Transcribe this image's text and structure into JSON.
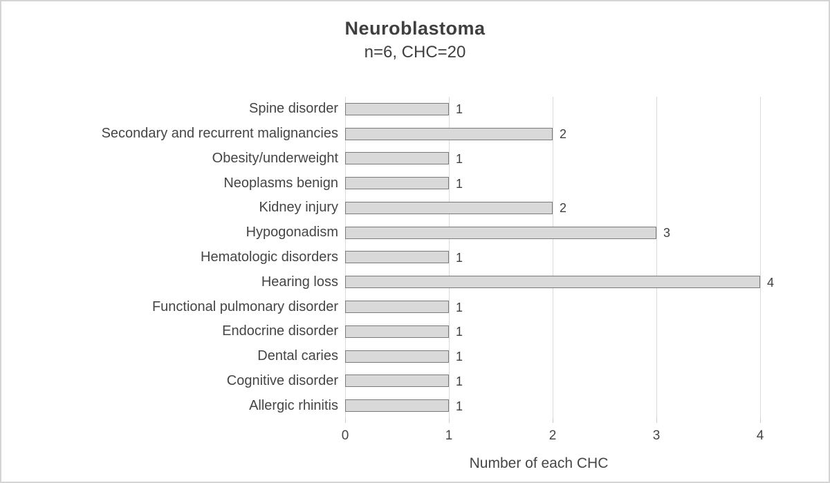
{
  "chart": {
    "title": "Neuroblastoma",
    "subtitle": "n=6, CHC=20",
    "xlabel": "Number of each CHC"
  },
  "chart_data": {
    "type": "bar",
    "orientation": "horizontal",
    "title": "Neuroblastoma",
    "subtitle": "n=6, CHC=20",
    "categories": [
      "Spine disorder",
      "Secondary and recurrent malignancies",
      "Obesity/underweight",
      "Neoplasms benign",
      "Kidney injury",
      "Hypogonadism",
      "Hematologic disorders",
      "Hearing loss",
      "Functional pulmonary disorder",
      "Endocrine disorder",
      "Dental caries",
      "Cognitive disorder",
      "Allergic rhinitis"
    ],
    "values": [
      1,
      2,
      1,
      1,
      2,
      3,
      1,
      4,
      1,
      1,
      1,
      1,
      1
    ],
    "data_labels": [
      "1",
      "2",
      "1",
      "1",
      "2",
      "3",
      "1",
      "4",
      "1",
      "1",
      "1",
      "1",
      "1"
    ],
    "xlabel": "Number of each CHC",
    "xlim": [
      0,
      4.5
    ],
    "xticks": [
      0,
      1,
      2,
      3,
      4
    ],
    "xtick_labels": [
      "0",
      "1",
      "2",
      "3",
      "4"
    ],
    "grid": true,
    "legend": "none",
    "colors": {
      "bar_fill": "#d9d9d9",
      "bar_border": "#7a7a7a",
      "gridline": "#d9d9d9",
      "text": "#454545",
      "title_text": "#3f3f3f",
      "frame_border": "#d4d4d4"
    }
  }
}
